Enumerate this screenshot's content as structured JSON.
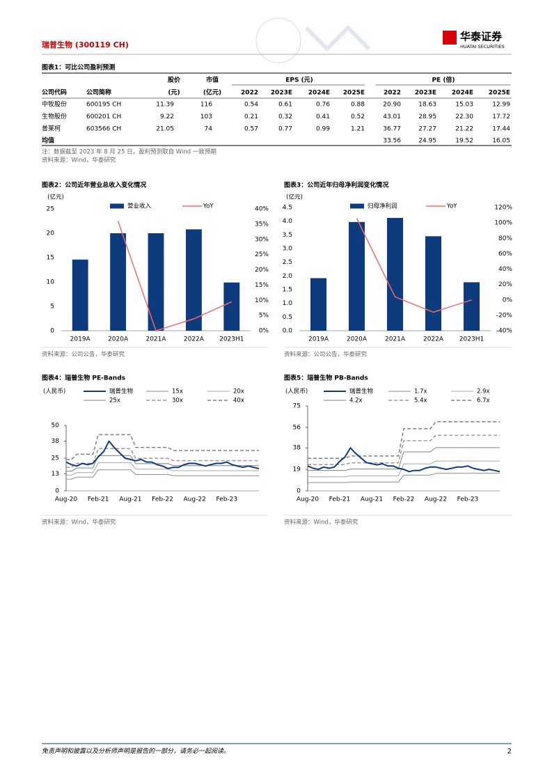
{
  "header": {
    "title": "瑞普生物 (300119 CH)",
    "logo": "华泰证券",
    "logo_en": "HUATAI SECURITIES"
  },
  "table": {
    "title": "图表1：可比公司盈利预测",
    "group_headers": [
      "股价",
      "市值",
      "EPS (元)",
      "PE (倍)"
    ],
    "columns": [
      "公司代码",
      "公司简称",
      "(元)",
      "(亿元)",
      "2022",
      "2023E",
      "2024E",
      "2025E",
      "2022",
      "2023E",
      "2024E",
      "2025E"
    ],
    "rows": [
      [
        "中牧股份",
        "600195 CH",
        "11.39",
        "116",
        "0.54",
        "0.61",
        "0.76",
        "0.88",
        "20.90",
        "18.63",
        "15.03",
        "12.99"
      ],
      [
        "生物股份",
        "600201 CH",
        "9.22",
        "103",
        "0.21",
        "0.32",
        "0.41",
        "0.52",
        "43.01",
        "28.95",
        "22.30",
        "17.72"
      ],
      [
        "普莱柯",
        "603566 CH",
        "21.05",
        "74",
        "0.57",
        "0.77",
        "0.99",
        "1.21",
        "36.77",
        "27.27",
        "21.22",
        "17.44"
      ]
    ],
    "average": {
      "label": "均值",
      "values": [
        "33.56",
        "24.95",
        "19.52",
        "16.05"
      ]
    },
    "note": "注：数据截至 2023 年 8 月 25 日，盈利预测取自 Wind 一致预期",
    "source": "资料来源：Wind，华泰研究"
  },
  "chart_data": [
    {
      "type": "bar",
      "title": "图表2：公司近年营业总收入变化情况",
      "unit": "(亿元)",
      "categories": [
        "2019A",
        "2020A",
        "2021A",
        "2022A",
        "2023H1"
      ],
      "series": [
        {
          "name": "营业收入",
          "type": "bar",
          "color": "#0e3a7e",
          "values": [
            14.6,
            20.0,
            20.0,
            20.8,
            9.9
          ]
        },
        {
          "name": "YoY",
          "type": "line",
          "axis": "y2",
          "color": "#f06b6b",
          "values": [
            null,
            36,
            0,
            3.9,
            9.5
          ]
        }
      ],
      "ylim": [
        0,
        25
      ],
      "yticks": [
        0,
        5,
        10,
        15,
        20,
        25
      ],
      "y2lim": [
        0,
        40
      ],
      "y2ticks": [
        {
          "value": 0,
          "label": "0%"
        },
        {
          "value": 5,
          "label": "5%"
        },
        {
          "value": 10,
          "label": "10%"
        },
        {
          "value": 15,
          "label": "15%"
        },
        {
          "value": 20,
          "label": "20%"
        },
        {
          "value": 25,
          "label": "25%"
        },
        {
          "value": 30,
          "label": "30%"
        },
        {
          "value": 35,
          "label": "35%"
        },
        {
          "value": 40,
          "label": "40%"
        }
      ],
      "source": "资料来源：公司公告，华泰研究"
    },
    {
      "type": "bar",
      "title": "图表3：公司近年归母净利润变化情况",
      "unit": "(亿元)",
      "categories": [
        "2019A",
        "2020A",
        "2021A",
        "2022A",
        "2023H1"
      ],
      "series": [
        {
          "name": "归母净利润",
          "type": "bar",
          "color": "#0e3a7e",
          "values": [
            1.92,
            3.97,
            4.12,
            3.45,
            1.77
          ]
        },
        {
          "name": "YoY",
          "type": "line",
          "axis": "y2",
          "color": "#f06b6b",
          "values": [
            null,
            106,
            4,
            -16,
            0
          ]
        }
      ],
      "ylim": [
        0,
        4.5
      ],
      "yticks": [
        {
          "value": 0,
          "label": "0.0"
        },
        0.5,
        {
          "value": 1,
          "label": "1.0"
        },
        1.5,
        {
          "value": 2,
          "label": "2.0"
        },
        2.5,
        {
          "value": 3,
          "label": "3.0"
        },
        3.5,
        {
          "value": 4,
          "label": "4.0"
        },
        4.5
      ],
      "y2lim": [
        -40,
        120
      ],
      "y2ticks": [
        {
          "value": -40,
          "label": "-40%"
        },
        {
          "value": -20,
          "label": "-20%"
        },
        {
          "value": 0,
          "label": "0%"
        },
        {
          "value": 20,
          "label": "20%"
        },
        {
          "value": 40,
          "label": "40%"
        },
        {
          "value": 60,
          "label": "60%"
        },
        {
          "value": 80,
          "label": "80%"
        },
        {
          "value": 100,
          "label": "100%"
        },
        {
          "value": 120,
          "label": "120%"
        }
      ],
      "source": "资料来源：公司公告，华泰研究"
    },
    {
      "type": "line",
      "title": "图表4：瑞普生物 PE-Bands",
      "unit": "(人民币)",
      "x": [
        "Aug-20",
        null,
        null,
        null,
        null,
        null,
        "Feb-21",
        null,
        null,
        null,
        null,
        null,
        "Aug-21",
        null,
        null,
        null,
        null,
        null,
        "Feb-22",
        null,
        null,
        null,
        null,
        null,
        "Aug-22",
        null,
        null,
        null,
        null,
        null,
        "Feb-23",
        null,
        null,
        null,
        null,
        null,
        null
      ],
      "series": [
        {
          "name": "瑞普生物",
          "color": "#0e3a7e",
          "width": 2,
          "dash": false,
          "values": [
            22,
            20,
            19,
            21,
            20,
            21,
            26,
            30,
            38,
            33,
            29,
            25,
            24,
            23,
            24,
            22,
            22,
            20,
            19,
            17,
            18,
            18,
            20,
            21,
            21,
            20,
            19,
            20,
            21,
            21,
            22,
            20,
            19,
            18,
            19,
            18,
            17
          ]
        },
        {
          "name": "15x",
          "color": "#8c8c8c",
          "width": 1,
          "dash": false,
          "values": [
            9,
            9,
            10.5,
            10.5,
            10.5,
            10.5,
            16.1,
            16.1,
            16.1,
            16.1,
            16.1,
            16.1,
            16.1,
            12.5,
            12.5,
            12.5,
            12.5,
            12.5,
            12.5,
            12.5,
            11.6,
            11.6,
            11.6,
            11.6,
            11.6,
            11.6,
            11.6,
            11.6,
            11.6,
            11.6,
            11.6,
            11.6,
            11.6,
            11.6,
            11.6,
            11.6,
            11.6
          ]
        },
        {
          "name": "20x",
          "color": "#a6a6a6",
          "width": 1,
          "dash": false,
          "values": [
            12,
            12,
            14,
            14,
            14,
            14,
            21.5,
            21.5,
            21.5,
            21.5,
            21.5,
            21.5,
            21.5,
            16.6,
            16.6,
            16.6,
            16.6,
            16.6,
            16.6,
            16.6,
            15.4,
            15.4,
            15.4,
            15.4,
            15.4,
            15.4,
            15.4,
            15.4,
            15.4,
            15.4,
            15.4,
            15.4,
            15.4,
            15.4,
            15.4,
            15.4,
            15.4
          ]
        },
        {
          "name": "25x",
          "color": "#7f7f7f",
          "width": 1,
          "dash": false,
          "values": [
            15,
            15,
            17.5,
            17.5,
            17.5,
            17.5,
            26.9,
            26.9,
            26.9,
            26.9,
            26.9,
            26.9,
            26.9,
            20.8,
            20.8,
            20.8,
            20.8,
            20.8,
            20.8,
            20.8,
            19.3,
            19.3,
            19.3,
            19.3,
            19.3,
            19.3,
            19.3,
            19.3,
            19.3,
            19.3,
            19.3,
            19.3,
            19.3,
            19.3,
            19.3,
            19.3,
            19.3
          ]
        },
        {
          "name": "30x",
          "color": "#999999",
          "width": 1.5,
          "dash": true,
          "values": [
            18,
            18,
            21,
            21,
            21,
            21,
            32.3,
            32.3,
            32.3,
            32.3,
            32.3,
            32.3,
            32.3,
            24.9,
            24.9,
            24.9,
            24.9,
            24.9,
            24.9,
            24.9,
            23.1,
            23.1,
            23.1,
            23.1,
            23.1,
            23.1,
            23.1,
            23.1,
            23.1,
            23.1,
            23.1,
            23.1,
            23.1,
            23.1,
            23.1,
            23.1,
            23.1
          ]
        },
        {
          "name": "40x",
          "color": "#808080",
          "width": 1.5,
          "dash": true,
          "values": [
            24,
            24,
            28,
            28,
            28,
            28,
            43,
            43,
            43,
            43,
            43,
            43,
            43,
            33.2,
            33.2,
            33.2,
            33.2,
            33.2,
            33.2,
            33.2,
            30.8,
            30.8,
            30.8,
            30.8,
            30.8,
            30.8,
            30.8,
            30.8,
            30.8,
            30.8,
            30.8,
            30.8,
            30.8,
            30.8,
            30.8,
            30.8,
            30.8
          ]
        }
      ],
      "ylim": [
        0,
        50
      ],
      "yticks": [
        0,
        13,
        25,
        38,
        50
      ],
      "source": "资料来源：Wind，华泰研究"
    },
    {
      "type": "line",
      "title": "图表5：瑞普生物 PB-Bands",
      "unit": "(人民币)",
      "x": [
        "Aug-20",
        null,
        null,
        null,
        null,
        null,
        "Feb-21",
        null,
        null,
        null,
        null,
        null,
        "Aug-21",
        null,
        null,
        null,
        null,
        null,
        "Feb-22",
        null,
        null,
        null,
        null,
        null,
        "Aug-22",
        null,
        null,
        null,
        null,
        null,
        "Feb-23",
        null,
        null,
        null,
        null,
        null,
        null
      ],
      "series": [
        {
          "name": "瑞普生物",
          "color": "#0e3a7e",
          "width": 2,
          "dash": false,
          "values": [
            22,
            20,
            19,
            21,
            20,
            21,
            26,
            30,
            38,
            33,
            29,
            25,
            24,
            23,
            24,
            22,
            22,
            20,
            19,
            17,
            18,
            18,
            20,
            21,
            21,
            20,
            19,
            20,
            21,
            21,
            22,
            20,
            19,
            18,
            19,
            18,
            17
          ]
        },
        {
          "name": "1.7x",
          "color": "#8c8c8c",
          "width": 1,
          "dash": false,
          "values": [
            7.3,
            7.3,
            7.3,
            7.3,
            7.3,
            7.3,
            7.3,
            7.3,
            7.8,
            7.8,
            7.8,
            7.8,
            7.8,
            7.8,
            7.8,
            7.8,
            7.8,
            7.8,
            13.9,
            13.9,
            13.9,
            13.9,
            13.9,
            13.9,
            15.5,
            15.5,
            15.5,
            15.5,
            15.5,
            15.5,
            15.5,
            15.5,
            15.5,
            15.5,
            15.5,
            15.5,
            15.5
          ]
        },
        {
          "name": "2.9x",
          "color": "#a6a6a6",
          "width": 1,
          "dash": false,
          "values": [
            12.5,
            12.5,
            12.5,
            12.5,
            12.5,
            12.5,
            12.5,
            12.5,
            13.3,
            13.3,
            13.3,
            13.3,
            13.3,
            13.3,
            13.3,
            13.3,
            13.3,
            13.3,
            23.8,
            23.8,
            23.8,
            23.8,
            23.8,
            23.8,
            26.4,
            26.4,
            26.4,
            26.4,
            26.4,
            26.4,
            26.4,
            26.4,
            26.4,
            26.4,
            26.4,
            26.4,
            26.4
          ]
        },
        {
          "name": "4.2x",
          "color": "#7f7f7f",
          "width": 1,
          "dash": false,
          "values": [
            18.1,
            18.1,
            18.1,
            18.1,
            18.1,
            18.1,
            18.1,
            18.1,
            19.3,
            19.3,
            19.3,
            19.3,
            19.3,
            19.3,
            19.3,
            19.3,
            19.3,
            19.3,
            34.4,
            34.4,
            34.4,
            34.4,
            34.4,
            34.4,
            38.2,
            38.2,
            38.2,
            38.2,
            38.2,
            38.2,
            38.2,
            38.2,
            38.2,
            38.2,
            38.2,
            38.2,
            38.2
          ]
        },
        {
          "name": "5.4x",
          "color": "#999999",
          "width": 1.5,
          "dash": true,
          "values": [
            23.2,
            23.2,
            23.2,
            23.2,
            23.2,
            23.2,
            23.2,
            23.2,
            24.8,
            24.8,
            24.8,
            24.8,
            24.8,
            24.8,
            24.8,
            24.8,
            24.8,
            24.8,
            44.3,
            44.3,
            44.3,
            44.3,
            44.3,
            44.3,
            49.1,
            49.1,
            49.1,
            49.1,
            49.1,
            49.1,
            49.1,
            49.1,
            49.1,
            49.1,
            49.1,
            49.1,
            49.1
          ]
        },
        {
          "name": "6.7x",
          "color": "#808080",
          "width": 1.5,
          "dash": true,
          "values": [
            28.8,
            28.8,
            28.8,
            28.8,
            28.8,
            28.8,
            28.8,
            28.8,
            30.8,
            30.8,
            30.8,
            30.8,
            30.8,
            30.8,
            30.8,
            30.8,
            30.8,
            30.8,
            54.9,
            54.9,
            54.9,
            54.9,
            54.9,
            54.9,
            61,
            61,
            61,
            61,
            61,
            61,
            61,
            61,
            61,
            61,
            61,
            61,
            61
          ]
        }
      ],
      "ylim": [
        0,
        75
      ],
      "yticks": [
        0,
        19,
        38,
        56,
        75
      ],
      "source": "资料来源：Wind，华泰研究"
    }
  ],
  "footer": {
    "disclaimer": "免责声明和披露以及分析师声明是报告的一部分，请务必一起阅读。",
    "page": "2"
  }
}
